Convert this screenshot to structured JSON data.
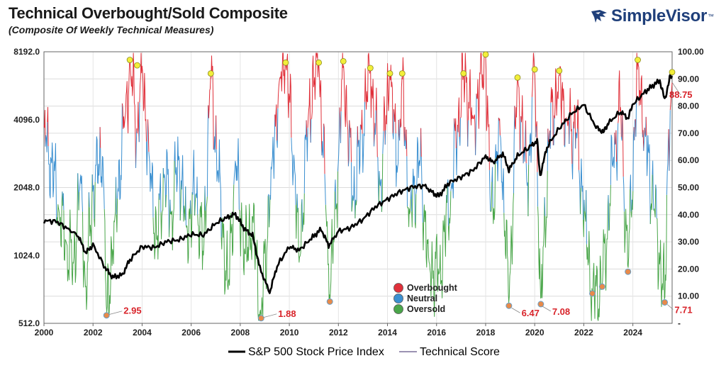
{
  "header": {
    "title": "Technical Overbought/Sold Composite",
    "subtitle": "(Composite Of Weekly Technical Measures)",
    "brand": "SimpleVisor",
    "brand_mark": "™"
  },
  "chart_data": {
    "type": "line",
    "title": "Technical Overbought/Sold Composite",
    "subtitle": "(Composite Of Weekly Technical Measures)",
    "x_range": [
      2000,
      2025.6
    ],
    "x_ticks": [
      "2000",
      "2002",
      "2004",
      "2006",
      "2008",
      "2010",
      "2012",
      "2014",
      "2016",
      "2018",
      "2020",
      "2022",
      "2024"
    ],
    "y_left": {
      "scale": "log2",
      "range": [
        512,
        8192
      ],
      "ticks": [
        "512.0",
        "1024.0",
        "2048.0",
        "4096.0",
        "8192.0"
      ]
    },
    "y_right": {
      "range": [
        0,
        100
      ],
      "ticks": [
        "-",
        "10.00",
        "20.00",
        "30.00",
        "40.00",
        "50.00",
        "60.00",
        "70.00",
        "80.00",
        "90.00",
        "100.00"
      ]
    },
    "grid": true,
    "series": [
      {
        "name": "S&P 500 Stock Price Index",
        "axis": "left",
        "color": "#000000",
        "points": [
          [
            2000,
            1460
          ],
          [
            2000.5,
            1450
          ],
          [
            2001,
            1340
          ],
          [
            2001.4,
            1250
          ],
          [
            2001.7,
            1050
          ],
          [
            2002,
            1140
          ],
          [
            2002.5,
            900
          ],
          [
            2002.8,
            820
          ],
          [
            2003.2,
            840
          ],
          [
            2003.5,
            980
          ],
          [
            2004,
            1120
          ],
          [
            2004.5,
            1110
          ],
          [
            2005,
            1180
          ],
          [
            2005.5,
            1200
          ],
          [
            2006,
            1270
          ],
          [
            2006.5,
            1260
          ],
          [
            2007,
            1420
          ],
          [
            2007.5,
            1520
          ],
          [
            2007.8,
            1560
          ],
          [
            2008.2,
            1330
          ],
          [
            2008.5,
            1260
          ],
          [
            2008.8,
            900
          ],
          [
            2009.2,
            700
          ],
          [
            2009.5,
            920
          ],
          [
            2010,
            1120
          ],
          [
            2010.4,
            1080
          ],
          [
            2010.9,
            1220
          ],
          [
            2011.3,
            1340
          ],
          [
            2011.6,
            1130
          ],
          [
            2012,
            1310
          ],
          [
            2012.5,
            1360
          ],
          [
            2013,
            1480
          ],
          [
            2013.5,
            1680
          ],
          [
            2014,
            1820
          ],
          [
            2014.5,
            1960
          ],
          [
            2015,
            2060
          ],
          [
            2015.5,
            2090
          ],
          [
            2015.9,
            1920
          ],
          [
            2016.1,
            1880
          ],
          [
            2016.5,
            2150
          ],
          [
            2017,
            2280
          ],
          [
            2017.5,
            2450
          ],
          [
            2018,
            2820
          ],
          [
            2018.3,
            2640
          ],
          [
            2018.7,
            2900
          ],
          [
            2018.95,
            2450
          ],
          [
            2019.3,
            2830
          ],
          [
            2019.8,
            3100
          ],
          [
            2020.1,
            3300
          ],
          [
            2020.22,
            2300
          ],
          [
            2020.5,
            3100
          ],
          [
            2021,
            3750
          ],
          [
            2021.5,
            4350
          ],
          [
            2021.99,
            4780
          ],
          [
            2022.5,
            3800
          ],
          [
            2022.8,
            3600
          ],
          [
            2023,
            3950
          ],
          [
            2023.5,
            4450
          ],
          [
            2023.8,
            4150
          ],
          [
            2024,
            4780
          ],
          [
            2024.5,
            5450
          ],
          [
            2024.9,
            5900
          ],
          [
            2025.1,
            6100
          ],
          [
            2025.3,
            5000
          ],
          [
            2025.5,
            6250
          ],
          [
            2025.6,
            6400
          ]
        ]
      },
      {
        "name": "Technical Score",
        "axis": "right",
        "bands": {
          "overbought_min": 70,
          "oversold_max": 45
        },
        "colors": {
          "overbought": "#e0303a",
          "neutral": "#3a8fd0",
          "oversold": "#4aa64a"
        },
        "points": [
          [
            2000,
            73
          ],
          [
            2000.3,
            60
          ],
          [
            2000.6,
            42
          ],
          [
            2000.9,
            30
          ],
          [
            2001.2,
            22
          ],
          [
            2001.5,
            55
          ],
          [
            2001.7,
            12
          ],
          [
            2002,
            50
          ],
          [
            2002.4,
            62
          ],
          [
            2002.55,
            2.95
          ],
          [
            2002.9,
            40
          ],
          [
            2003.3,
            75
          ],
          [
            2003.5,
            97
          ],
          [
            2003.8,
            70
          ],
          [
            2004,
            95
          ],
          [
            2004.3,
            60
          ],
          [
            2004.6,
            30
          ],
          [
            2004.9,
            55
          ],
          [
            2005.2,
            40
          ],
          [
            2005.5,
            62
          ],
          [
            2005.8,
            35
          ],
          [
            2006.2,
            48
          ],
          [
            2006.5,
            25
          ],
          [
            2006.8,
            92
          ],
          [
            2007.1,
            55
          ],
          [
            2007.5,
            12
          ],
          [
            2007.8,
            60
          ],
          [
            2008.2,
            25
          ],
          [
            2008.5,
            40
          ],
          [
            2008.85,
            1.88
          ],
          [
            2009.3,
            60
          ],
          [
            2009.6,
            90
          ],
          [
            2009.85,
            96
          ],
          [
            2010.2,
            60
          ],
          [
            2010.4,
            22
          ],
          [
            2010.8,
            80
          ],
          [
            2011.2,
            96
          ],
          [
            2011.5,
            40
          ],
          [
            2011.65,
            8
          ],
          [
            2012,
            60
          ],
          [
            2012.2,
            96
          ],
          [
            2012.6,
            45
          ],
          [
            2013.3,
            94
          ],
          [
            2013.7,
            50
          ],
          [
            2014.1,
            92
          ],
          [
            2014.4,
            55
          ],
          [
            2014.6,
            92
          ],
          [
            2014.9,
            40
          ],
          [
            2015.3,
            60
          ],
          [
            2015.7,
            22
          ],
          [
            2016.1,
            18
          ],
          [
            2016.6,
            50
          ],
          [
            2017.1,
            92
          ],
          [
            2017.5,
            75
          ],
          [
            2018,
            99
          ],
          [
            2018.2,
            40
          ],
          [
            2018.6,
            70
          ],
          [
            2018.95,
            6.47
          ],
          [
            2019.3,
            91
          ],
          [
            2019.7,
            50
          ],
          [
            2020,
            94
          ],
          [
            2020.25,
            7.08
          ],
          [
            2020.6,
            70
          ],
          [
            2021,
            92
          ],
          [
            2021.3,
            75
          ],
          [
            2021.7,
            70
          ],
          [
            2022.05,
            40
          ],
          [
            2022.35,
            11
          ],
          [
            2022.75,
            14
          ],
          [
            2023.2,
            60
          ],
          [
            2023.5,
            80
          ],
          [
            2023.8,
            19
          ],
          [
            2024.2,
            97
          ],
          [
            2024.5,
            70
          ],
          [
            2024.9,
            40
          ],
          [
            2025.3,
            7.71
          ],
          [
            2025.45,
            70
          ],
          [
            2025.55,
            82
          ],
          [
            2025.6,
            88.75
          ]
        ]
      }
    ],
    "annotations": [
      {
        "x": 2002.55,
        "y": 2.95,
        "label": "2.95"
      },
      {
        "x": 2008.85,
        "y": 1.88,
        "label": "1.88"
      },
      {
        "x": 2019.0,
        "y": 6.47,
        "label": "6.47"
      },
      {
        "x": 2020.25,
        "y": 7.08,
        "label": "7.08"
      },
      {
        "x": 2025.35,
        "y": 7.71,
        "label": "7.71"
      },
      {
        "x": 2025.6,
        "y": 88.75,
        "label": "88.75"
      }
    ],
    "highs": [
      [
        2003.5,
        97
      ],
      [
        2003.8,
        95
      ],
      [
        2006.8,
        92
      ],
      [
        2009.85,
        96
      ],
      [
        2011.2,
        96
      ],
      [
        2012.2,
        96.5
      ],
      [
        2013.3,
        94
      ],
      [
        2014.1,
        92
      ],
      [
        2014.6,
        92
      ],
      [
        2017.1,
        92
      ],
      [
        2018,
        99
      ],
      [
        2019.3,
        90.5
      ],
      [
        2020,
        93.5
      ],
      [
        2021,
        93
      ],
      [
        2024.2,
        97
      ],
      [
        2025.6,
        92.5
      ]
    ],
    "lows": [
      [
        2002.55,
        2.95
      ],
      [
        2008.85,
        1.88
      ],
      [
        2011.65,
        8
      ],
      [
        2018.95,
        6.47
      ],
      [
        2020.25,
        7.08
      ],
      [
        2022.35,
        11
      ],
      [
        2022.75,
        13.5
      ],
      [
        2023.8,
        19
      ],
      [
        2025.3,
        7.71
      ]
    ],
    "legend": {
      "placement": "center",
      "items": [
        {
          "label": "Overbought",
          "color": "#e0303a"
        },
        {
          "label": "Neutral",
          "color": "#3a8fd0"
        },
        {
          "label": "Oversold",
          "color": "#4aa64a"
        }
      ]
    },
    "bottom_legend": [
      {
        "label": "S&P 500 Stock Price Index",
        "color": "#000000"
      },
      {
        "label": "Technical Score",
        "color": "#7a6f9a"
      }
    ]
  }
}
